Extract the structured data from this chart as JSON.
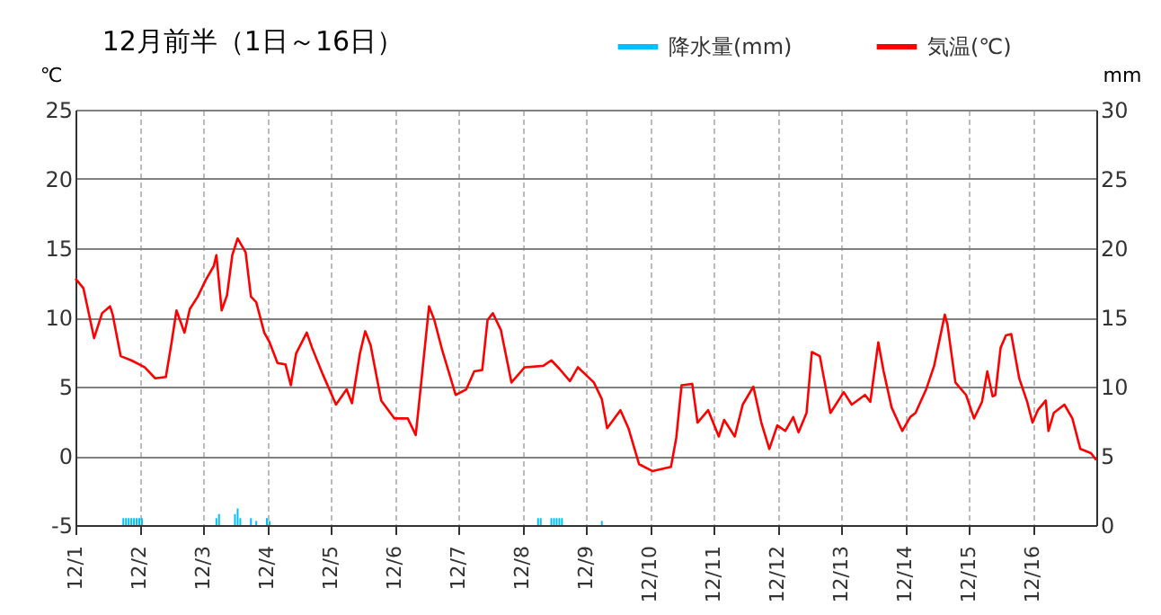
{
  "chart_data": {
    "type": "line",
    "title": "12月前半（1日～16日）",
    "ylabel": "℃",
    "y2label": "mm",
    "xlim": [
      "--12-01",
      "--12-17"
    ],
    "xticks": [
      {
        "value": "--12-01",
        "label": "12/1"
      },
      {
        "value": "--12-02",
        "label": "12/2"
      },
      {
        "value": "--12-03",
        "label": "12/3"
      },
      {
        "value": "--12-04",
        "label": "12/4"
      },
      {
        "value": "--12-05",
        "label": "12/5"
      },
      {
        "value": "--12-06",
        "label": "12/6"
      },
      {
        "value": "--12-07",
        "label": "12/7"
      },
      {
        "value": "--12-08",
        "label": "12/8"
      },
      {
        "value": "--12-09",
        "label": "12/9"
      },
      {
        "value": "--12-10",
        "label": "12/10"
      },
      {
        "value": "--12-11",
        "label": "12/11"
      },
      {
        "value": "--12-12",
        "label": "12/12"
      },
      {
        "value": "--12-13",
        "label": "12/13"
      },
      {
        "value": "--12-14",
        "label": "12/14"
      },
      {
        "value": "--12-15",
        "label": "12/15"
      },
      {
        "value": "--12-16",
        "label": "12/16"
      }
    ],
    "ylim": [
      -5,
      25
    ],
    "yticks": [
      -5,
      0,
      5,
      10,
      15,
      20,
      25
    ],
    "y2lim": [
      0,
      30
    ],
    "y2ticks": [
      0,
      5,
      10,
      15,
      20,
      25,
      30
    ],
    "grid": true,
    "legend": "top right",
    "series": [
      {
        "name": "降水量(mm)",
        "type": "bar",
        "axis": "y2",
        "color": "#00c0ff",
        "x": [
          "--12-01T18:00",
          "--12-01T19:00",
          "--12-01T20:00",
          "--12-01T21:00",
          "--12-01T22:00",
          "--12-01T23:00",
          "--12-02T00:00",
          "--12-02T01:00",
          "--12-03T05:00",
          "--12-03T06:00",
          "--12-03T12:00",
          "--12-03T13:00",
          "--12-03T14:00",
          "--12-03T18:00",
          "--12-03T20:00",
          "--12-04T00:00",
          "--12-04T01:00",
          "--12-08T06:00",
          "--12-08T07:00",
          "--12-08T11:00",
          "--12-08T12:00",
          "--12-08T13:00",
          "--12-08T14:00",
          "--12-08T15:00",
          "--12-09T06:00"
        ],
        "values": [
          0.5,
          0.5,
          0.5,
          0.5,
          0.5,
          0.5,
          0.5,
          0.5,
          0.5,
          0.8,
          0.8,
          1.2,
          0.5,
          0.5,
          0.3,
          0.5,
          0.3,
          0.5,
          0.5,
          0.5,
          0.5,
          0.5,
          0.5,
          0.5,
          0.3
        ]
      },
      {
        "name": "気温(℃)",
        "color": "#ff0000",
        "x": [
          "--12-01T00:00",
          "--12-01T03:00",
          "--12-01T07:00",
          "--12-01T10:00",
          "--12-01T13:00",
          "--12-01T14:00",
          "--12-01T17:00",
          "--12-01T21:00",
          "--12-02T02:00",
          "--12-02T06:00",
          "--12-02T10:00",
          "--12-02T12:00",
          "--12-02T14:00",
          "--12-02T17:00",
          "--12-02T19:00",
          "--12-02T22:00",
          "--12-03T01:00",
          "--12-03T04:00",
          "--12-03T05:00",
          "--12-03T07:00",
          "--12-03T09:00",
          "--12-03T11:00",
          "--12-03T13:00",
          "--12-03T16:00",
          "--12-03T18:00",
          "--12-03T20:00",
          "--12-03T23:00",
          "--12-04T01:00",
          "--12-04T04:00",
          "--12-04T07:00",
          "--12-04T09:00",
          "--12-04T11:00",
          "--12-04T15:00",
          "--12-04T17:00",
          "--12-04T21:00",
          "--12-05T02:00",
          "--12-05T06:00",
          "--12-05T08:00",
          "--12-05T11:00",
          "--12-05T13:00",
          "--12-05T15:00",
          "--12-05T19:00",
          "--12-06T00:00",
          "--12-06T05:00",
          "--12-06T08:00",
          "--12-06T10:00",
          "--12-06T13:00",
          "--12-06T15:00",
          "--12-06T18:00",
          "--12-06T23:00",
          "--12-07T03:00",
          "--12-07T06:00",
          "--12-07T09:00",
          "--12-07T11:00",
          "--12-07T13:00",
          "--12-07T16:00",
          "--12-07T20:00",
          "--12-08T01:00",
          "--12-08T08:00",
          "--12-08T11:00",
          "--12-08T14:00",
          "--12-08T18:00",
          "--12-08T21:00",
          "--12-09T03:00",
          "--12-09T06:00",
          "--12-09T08:00",
          "--12-09T13:00",
          "--12-09T16:00",
          "--12-09T20:00",
          "--12-10T01:00",
          "--12-10T08:00",
          "--12-10T10:00",
          "--12-10T12:00",
          "--12-10T16:00",
          "--12-10T18:00",
          "--12-10T22:00",
          "--12-11T02:00",
          "--12-11T04:00",
          "--12-11T08:00",
          "--12-11T11:00",
          "--12-11T15:00",
          "--12-11T18:00",
          "--12-11T21:00",
          "--12-12T00:00",
          "--12-12T03:00",
          "--12-12T06:00",
          "--12-12T08:00",
          "--12-12T11:00",
          "--12-12T13:00",
          "--12-12T16:00",
          "--12-12T20:00",
          "--12-12T22:00",
          "--12-13T01:00",
          "--12-13T04:00",
          "--12-13T09:00",
          "--12-13T11:00",
          "--12-13T14:00",
          "--12-13T16:00",
          "--12-13T19:00",
          "--12-13T23:00",
          "--12-14T02:00",
          "--12-14T04:00",
          "--12-14T08:00",
          "--12-14T11:00",
          "--12-14T15:00",
          "--12-14T16:00",
          "--12-14T19:00",
          "--12-14T23:00",
          "--12-15T02:00",
          "--12-15T05:00",
          "--12-15T07:00",
          "--12-15T09:00",
          "--12-15T10:00",
          "--12-15T12:00",
          "--12-15T14:00",
          "--12-15T16:00",
          "--12-15T19:00",
          "--12-15T22:00",
          "--12-16T00:00",
          "--12-16T02:00",
          "--12-16T05:00",
          "--12-16T06:00",
          "--12-16T08:00",
          "--12-16T12:00",
          "--12-16T15:00",
          "--12-16T18:00",
          "--12-16T22:00",
          "--12-17T00:00"
        ],
        "values": [
          12.8,
          12.1,
          8.5,
          10.3,
          10.8,
          10.2,
          7.2,
          6.9,
          6.4,
          5.6,
          5.7,
          8.0,
          10.5,
          8.9,
          10.6,
          11.5,
          12.7,
          13.7,
          14.5,
          10.5,
          11.6,
          14.5,
          15.7,
          14.7,
          11.5,
          11.1,
          8.9,
          8.2,
          6.7,
          6.6,
          5.1,
          7.4,
          8.9,
          7.8,
          5.9,
          3.7,
          4.8,
          3.8,
          7.4,
          9.0,
          8.0,
          4.0,
          2.7,
          2.7,
          1.5,
          5.2,
          10.8,
          9.8,
          7.6,
          4.4,
          4.8,
          6.1,
          6.2,
          9.8,
          10.3,
          9.1,
          5.3,
          6.4,
          6.5,
          6.9,
          6.3,
          5.4,
          6.4,
          5.3,
          4.1,
          2.0,
          3.3,
          2.0,
          -0.6,
          -1.1,
          -0.8,
          1.3,
          5.1,
          5.2,
          2.4,
          3.3,
          1.4,
          2.6,
          1.4,
          3.7,
          5.0,
          2.4,
          0.5,
          2.2,
          1.8,
          2.8,
          1.7,
          3.1,
          7.5,
          7.2,
          3.1,
          3.7,
          4.6,
          3.7,
          4.4,
          3.9,
          8.2,
          6.1,
          3.5,
          1.8,
          2.8,
          3.1,
          4.8,
          6.5,
          10.2,
          9.5,
          5.3,
          4.4,
          2.7,
          3.9,
          6.1,
          4.3,
          4.4,
          7.8,
          8.7,
          8.8,
          5.6,
          3.9,
          2.4,
          3.3,
          4.0,
          1.8,
          3.1,
          3.7,
          2.7,
          0.5,
          0.2,
          -0.3
        ]
      }
    ]
  }
}
